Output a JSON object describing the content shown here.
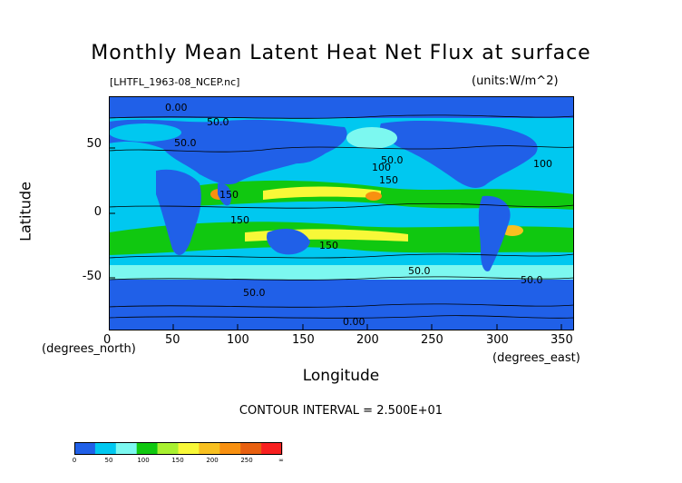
{
  "chart_data": {
    "type": "heatmap",
    "title": "Monthly Mean Latent Heat Net Flux at surface",
    "subtitle": "[LHTFL_1963-08_NCEP.nc]",
    "units": "(units:W/m^2)",
    "xlabel": "Longitude",
    "ylabel": "Latitude",
    "x_unit_note": "(degrees_east)",
    "y_unit_note": "(degrees_north)",
    "xlim": [
      0,
      360
    ],
    "ylim": [
      -90,
      90
    ],
    "x_ticks": [
      "0",
      "50",
      "100",
      "150",
      "200",
      "250",
      "300",
      "350"
    ],
    "y_ticks": [
      "50",
      "0",
      "-50"
    ],
    "contour_interval": "CONTOUR INTERVAL = 2.500E+01",
    "contour_labels": [
      "0.00",
      "50.0",
      "50.0",
      "100",
      "150",
      "50.0",
      "150",
      "50.0",
      "100",
      "150",
      "150",
      "50.0",
      "50.0",
      "0.00"
    ],
    "colorbar": {
      "levels": [
        "0",
        "50",
        "100",
        "150",
        "200",
        "250",
        "∞"
      ],
      "colors": [
        "#2060e8",
        "#00c8f0",
        "#7cf8f0",
        "#10c810",
        "#a8f030",
        "#f8f838",
        "#f8c020",
        "#f89010",
        "#e86010",
        "#f82020"
      ]
    }
  }
}
